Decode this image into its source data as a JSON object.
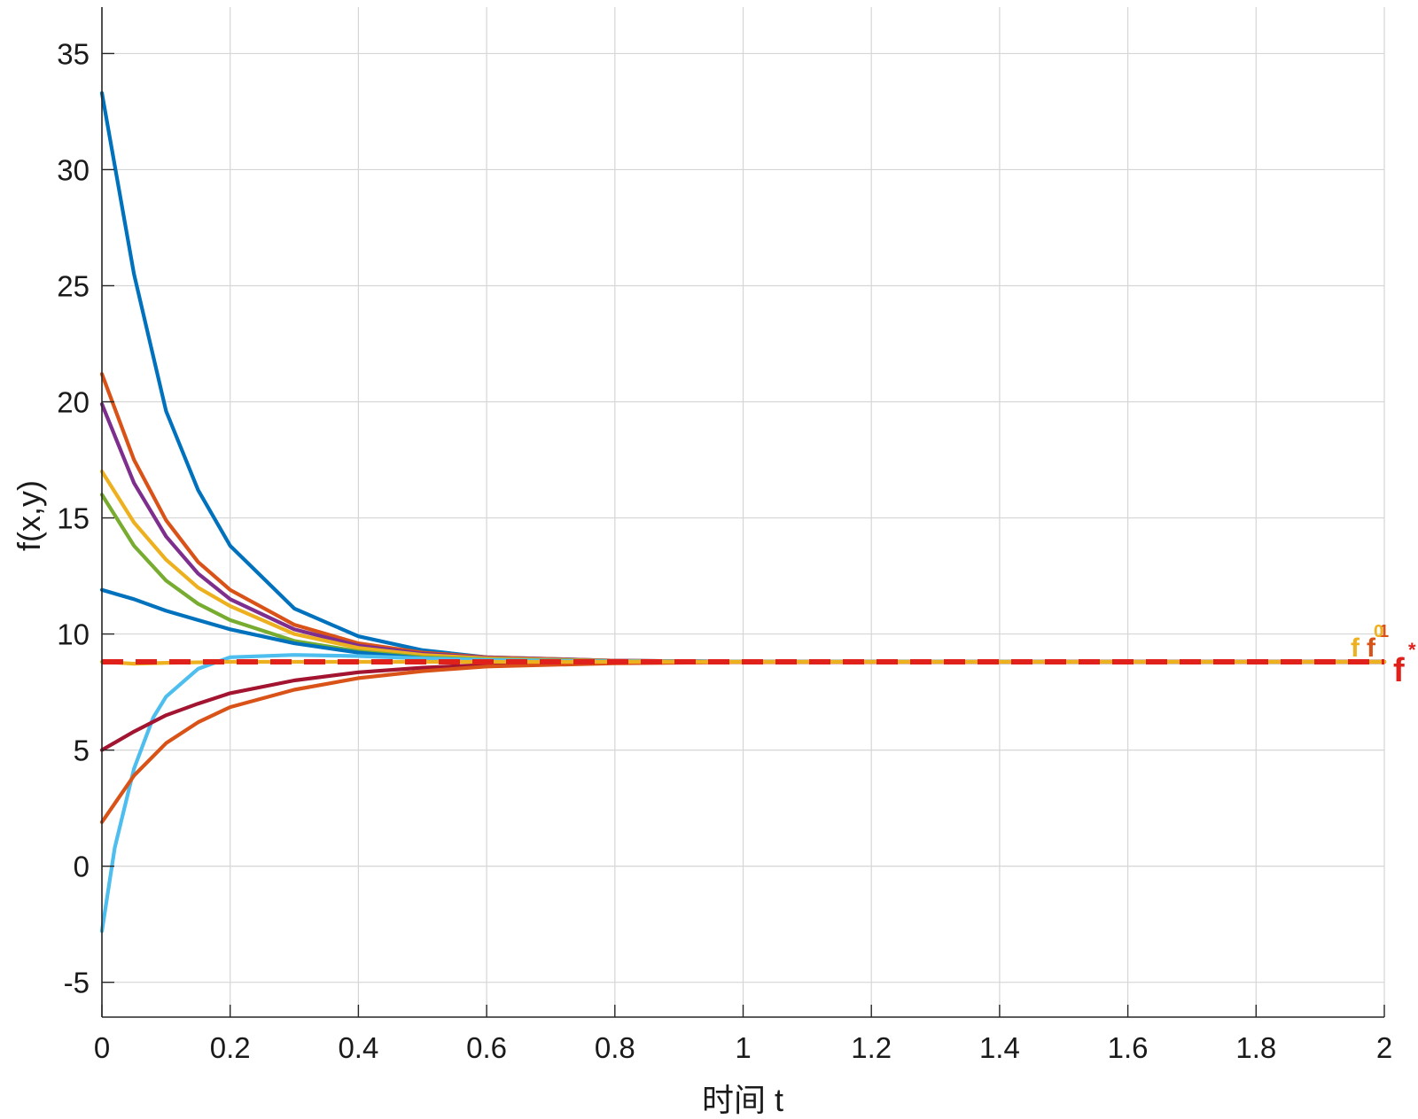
{
  "chart_data": {
    "type": "line",
    "xlabel": "时间 t",
    "ylabel": "f(x,y)",
    "xlim": [
      0,
      2
    ],
    "ylim": [
      -6.5,
      37
    ],
    "x_ticks": [
      "0",
      "0.2",
      "0.4",
      "0.6",
      "0.8",
      "1",
      "1.2",
      "1.4",
      "1.6",
      "1.8",
      "2"
    ],
    "x_tick_values": [
      0,
      0.2,
      0.4,
      0.6,
      0.8,
      1,
      1.2,
      1.4,
      1.6,
      1.8,
      2
    ],
    "y_ticks": [
      "-5",
      "0",
      "5",
      "10",
      "15",
      "20",
      "25",
      "30",
      "35"
    ],
    "y_tick_values": [
      -5,
      0,
      5,
      10,
      15,
      20,
      25,
      30,
      35
    ],
    "grid": true,
    "reference": {
      "value": 8.8,
      "color": "#e0201b",
      "style": "dashed",
      "label": "f",
      "label_sup": "*"
    },
    "end_labels": [
      {
        "text": "f",
        "sup": "1",
        "color": "#d95319"
      },
      {
        "text": "f",
        "sup": "0",
        "color": "#edb120"
      }
    ],
    "series": [
      {
        "color": "#0072bd",
        "x": [
          0,
          0.05,
          0.1,
          0.15,
          0.2,
          0.3,
          0.4,
          0.5,
          0.6,
          0.8,
          1.0,
          1.5,
          2.0
        ],
        "y": [
          33.3,
          25.5,
          19.6,
          16.2,
          13.8,
          11.1,
          9.9,
          9.3,
          9.0,
          8.85,
          8.81,
          8.8,
          8.8
        ]
      },
      {
        "color": "#d95319",
        "x": [
          0,
          0.05,
          0.1,
          0.15,
          0.2,
          0.3,
          0.4,
          0.5,
          0.6,
          0.8,
          1.0,
          1.5,
          2.0
        ],
        "y": [
          21.2,
          17.5,
          14.9,
          13.1,
          11.9,
          10.4,
          9.6,
          9.2,
          9.0,
          8.85,
          8.81,
          8.8,
          8.8
        ]
      },
      {
        "color": "#7e2f8e",
        "x": [
          0,
          0.05,
          0.1,
          0.15,
          0.2,
          0.3,
          0.4,
          0.5,
          0.6,
          0.8,
          1.0,
          1.5,
          2.0
        ],
        "y": [
          19.9,
          16.5,
          14.2,
          12.6,
          11.5,
          10.2,
          9.5,
          9.15,
          8.98,
          8.85,
          8.81,
          8.8,
          8.8
        ]
      },
      {
        "color": "#edb120",
        "x": [
          0,
          0.05,
          0.1,
          0.15,
          0.2,
          0.3,
          0.4,
          0.5,
          0.6,
          0.8,
          1.0,
          1.5,
          2.0
        ],
        "y": [
          17.0,
          14.8,
          13.2,
          12.0,
          11.2,
          10.0,
          9.4,
          9.1,
          8.95,
          8.84,
          8.81,
          8.8,
          8.8
        ]
      },
      {
        "color": "#77ac30",
        "x": [
          0,
          0.05,
          0.1,
          0.15,
          0.2,
          0.3,
          0.4,
          0.5,
          0.6,
          0.8,
          1.0,
          1.5,
          2.0
        ],
        "y": [
          16.0,
          13.8,
          12.3,
          11.3,
          10.6,
          9.7,
          9.25,
          9.0,
          8.9,
          8.83,
          8.8,
          8.8,
          8.8
        ]
      },
      {
        "color": "#0072bd",
        "x": [
          0,
          0.05,
          0.1,
          0.15,
          0.2,
          0.3,
          0.4,
          0.5,
          0.6,
          0.8,
          1.0,
          1.5,
          2.0
        ],
        "y": [
          11.9,
          11.5,
          11.0,
          10.6,
          10.2,
          9.6,
          9.2,
          8.95,
          8.86,
          8.81,
          8.8,
          8.8,
          8.8
        ]
      },
      {
        "color": "#4dbeee",
        "x": [
          0,
          0.02,
          0.05,
          0.08,
          0.1,
          0.15,
          0.2,
          0.3,
          0.4,
          0.5,
          0.6,
          0.8,
          1.0,
          2.0
        ],
        "y": [
          -2.8,
          0.8,
          4.2,
          6.4,
          7.3,
          8.5,
          9.0,
          9.1,
          9.05,
          8.95,
          8.88,
          8.82,
          8.8,
          8.8
        ]
      },
      {
        "color": "#a2142f",
        "x": [
          0,
          0.05,
          0.1,
          0.15,
          0.2,
          0.3,
          0.4,
          0.5,
          0.6,
          0.8,
          1.0,
          1.5,
          2.0
        ],
        "y": [
          5.0,
          5.8,
          6.5,
          7.0,
          7.45,
          8.0,
          8.35,
          8.55,
          8.67,
          8.77,
          8.79,
          8.8,
          8.8
        ]
      },
      {
        "color": "#d95319",
        "x": [
          0,
          0.05,
          0.1,
          0.15,
          0.2,
          0.3,
          0.4,
          0.5,
          0.6,
          0.8,
          1.0,
          1.5,
          2.0
        ],
        "y": [
          1.9,
          3.9,
          5.3,
          6.2,
          6.85,
          7.6,
          8.1,
          8.4,
          8.6,
          8.74,
          8.79,
          8.8,
          8.8
        ]
      },
      {
        "color": "#edb120",
        "x": [
          0,
          0.05,
          0.1,
          0.2,
          0.3,
          0.5,
          1.0,
          2.0
        ],
        "y": [
          8.8,
          8.72,
          8.76,
          8.8,
          8.8,
          8.8,
          8.8,
          8.8
        ]
      }
    ]
  }
}
